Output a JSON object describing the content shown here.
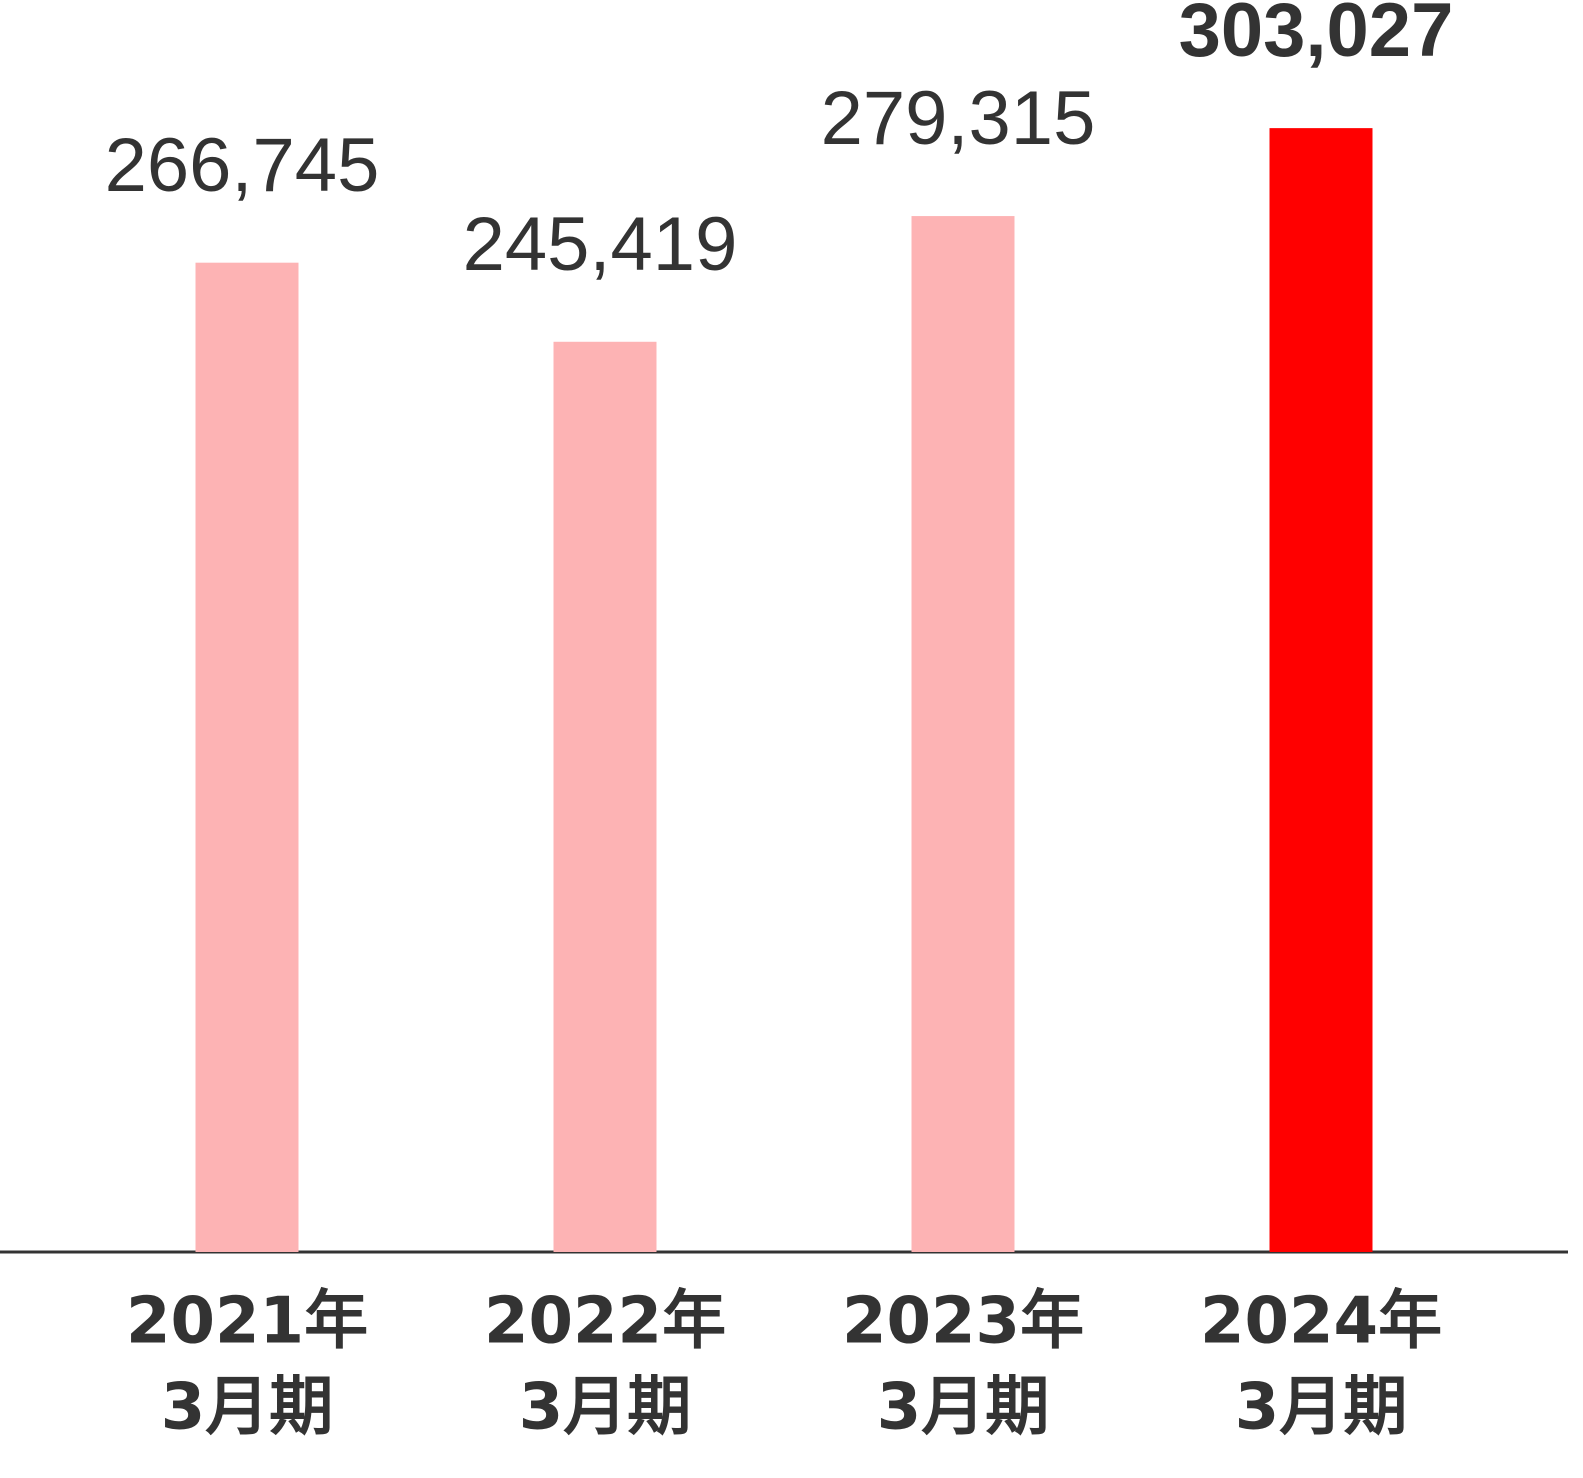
{
  "chart_data": {
    "type": "bar",
    "categories": [
      [
        "2021年",
        "3月期"
      ],
      [
        "2022年",
        "3月期"
      ],
      [
        "2023年",
        "3月期"
      ],
      [
        "2024年",
        "3月期"
      ]
    ],
    "values": [
      266745,
      245419,
      279315,
      303027
    ],
    "value_labels": [
      "266,745",
      "245,419",
      "279,315",
      "303,027"
    ],
    "value_label_bold": [
      false,
      false,
      false,
      true
    ],
    "colors": [
      "#fdb3b4",
      "#fdb3b4",
      "#fdb3b4",
      "#ff0000"
    ],
    "ylim": [
      0,
      340000
    ]
  }
}
